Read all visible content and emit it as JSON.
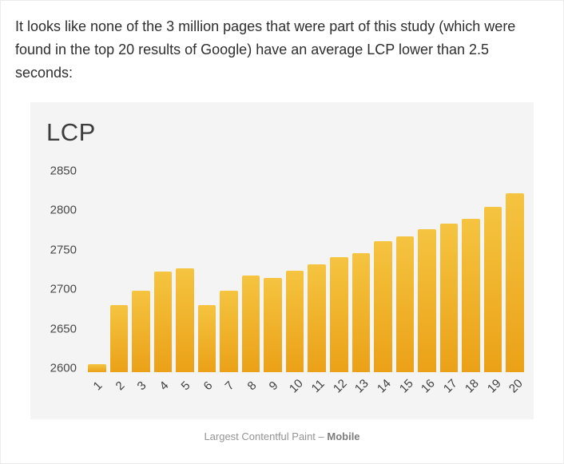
{
  "article": {
    "paragraph": "It looks like none of the 3 million pages that were part of this study (which were found in the top 20 results of Google) have an average LCP lower than 2.5 seconds:"
  },
  "chart": {
    "title": "LCP",
    "caption_prefix": "Largest Contentful Paint – ",
    "caption_bold": "Mobile"
  },
  "chart_data": {
    "type": "bar",
    "title": "LCP",
    "categories": [
      "1",
      "2",
      "3",
      "4",
      "5",
      "6",
      "7",
      "8",
      "9",
      "10",
      "11",
      "12",
      "13",
      "14",
      "15",
      "16",
      "17",
      "18",
      "19",
      "20"
    ],
    "values": [
      2605,
      2680,
      2698,
      2722,
      2726,
      2680,
      2698,
      2717,
      2714,
      2723,
      2732,
      2741,
      2746,
      2761,
      2767,
      2776,
      2783,
      2789,
      2804,
      2822
    ],
    "xlabel": "",
    "ylabel": "",
    "ylim": [
      2595,
      2860
    ],
    "yticks": [
      2600,
      2650,
      2700,
      2750,
      2800,
      2850
    ],
    "grid": false,
    "legend": false,
    "bar_color_top": "#f5c440",
    "bar_color_bottom": "#eba117",
    "plot_background": "#f4f4f5"
  }
}
